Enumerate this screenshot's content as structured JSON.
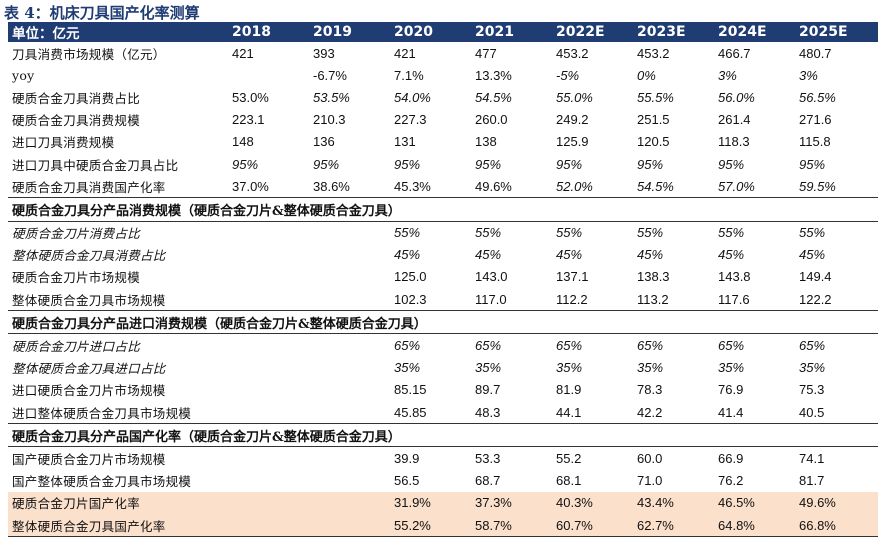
{
  "title": "表 4：机床刀具国产化率测算",
  "header": {
    "label": "单位：亿元",
    "years": [
      "2018",
      "2019",
      "2020",
      "2021",
      "2022E",
      "2023E",
      "2024E",
      "2025E"
    ]
  },
  "rows": [
    {
      "label": "刀具消费市场规模（亿元）",
      "values": [
        "421",
        "393",
        "421",
        "477",
        "453.2",
        "453.2",
        "466.7",
        "480.7"
      ],
      "italic_from": 8
    },
    {
      "label": "yoy",
      "values": [
        "",
        "-6.7%",
        "7.1%",
        "13.3%",
        "-5%",
        "0%",
        "3%",
        "3%"
      ],
      "italic_from": 4
    },
    {
      "label": "硬质合金刀具消费占比",
      "values": [
        "53.0%",
        "53.5%",
        "54.0%",
        "54.5%",
        "55.0%",
        "55.5%",
        "56.0%",
        "56.5%"
      ],
      "italic_from": 1
    },
    {
      "label": "硬质合金刀具消费规模",
      "values": [
        "223.1",
        "210.3",
        "227.3",
        "260.0",
        "249.2",
        "251.5",
        "261.4",
        "271.6"
      ],
      "italic_from": 8
    },
    {
      "label": "进口刀具消费规模",
      "values": [
        "148",
        "136",
        "131",
        "138",
        "125.9",
        "120.5",
        "118.3",
        "115.8"
      ],
      "italic_from": 8
    },
    {
      "label": "进口刀具中硬质合金刀具占比",
      "values": [
        "95%",
        "95%",
        "95%",
        "95%",
        "95%",
        "95%",
        "95%",
        "95%"
      ],
      "italic_from": 0
    },
    {
      "label": "硬质合金刀具消费国产化率",
      "values": [
        "37.0%",
        "38.6%",
        "45.3%",
        "49.6%",
        "52.0%",
        "54.5%",
        "57.0%",
        "59.5%"
      ],
      "italic_from": 4
    },
    {
      "section": "硬质合金刀具分产品消费规模（硬质合金刀片&整体硬质合金刀具）"
    },
    {
      "label": "硬质合金刀片消费占比",
      "values": [
        "",
        "",
        "55%",
        "55%",
        "55%",
        "55%",
        "55%",
        "55%"
      ],
      "italic_from": 0,
      "italic_label": true
    },
    {
      "label": "整体硬质合金刀具消费占比",
      "values": [
        "",
        "",
        "45%",
        "45%",
        "45%",
        "45%",
        "45%",
        "45%"
      ],
      "italic_from": 0,
      "italic_label": true
    },
    {
      "label": "硬质合金刀片市场规模",
      "values": [
        "",
        "",
        "125.0",
        "143.0",
        "137.1",
        "138.3",
        "143.8",
        "149.4"
      ],
      "italic_from": 8
    },
    {
      "label": "整体硬质合金刀具市场规模",
      "values": [
        "",
        "",
        "102.3",
        "117.0",
        "112.2",
        "113.2",
        "117.6",
        "122.2"
      ],
      "italic_from": 8
    },
    {
      "section": "硬质合金刀具分产品进口消费规模（硬质合金刀片&整体硬质合金刀具）"
    },
    {
      "label": "硬质合金刀片进口占比",
      "values": [
        "",
        "",
        "65%",
        "65%",
        "65%",
        "65%",
        "65%",
        "65%"
      ],
      "italic_from": 0,
      "italic_label": true
    },
    {
      "label": "整体硬质合金刀具进口占比",
      "values": [
        "",
        "",
        "35%",
        "35%",
        "35%",
        "35%",
        "35%",
        "35%"
      ],
      "italic_from": 0,
      "italic_label": true
    },
    {
      "label": "进口硬质合金刀片市场规模",
      "values": [
        "",
        "",
        "85.15",
        "89.7",
        "81.9",
        "78.3",
        "76.9",
        "75.3"
      ],
      "italic_from": 8
    },
    {
      "label": "进口整体硬质合金刀具市场规模",
      "values": [
        "",
        "",
        "45.85",
        "48.3",
        "44.1",
        "42.2",
        "41.4",
        "40.5"
      ],
      "italic_from": 8
    },
    {
      "section": "硬质合金刀具分产品国产化率（硬质合金刀片&整体硬质合金刀具）"
    },
    {
      "label": "国产硬质合金刀片市场规模",
      "values": [
        "",
        "",
        "39.9",
        "53.3",
        "55.2",
        "60.0",
        "66.9",
        "74.1"
      ],
      "italic_from": 8
    },
    {
      "label": "国产整体硬质合金刀具市场规模",
      "values": [
        "",
        "",
        "56.5",
        "68.7",
        "68.1",
        "71.0",
        "76.2",
        "81.7"
      ],
      "italic_from": 8
    },
    {
      "label": "硬质合金刀片国产化率",
      "values": [
        "",
        "",
        "31.9%",
        "37.3%",
        "40.3%",
        "43.4%",
        "46.5%",
        "49.6%"
      ],
      "italic_from": 8,
      "highlight": true
    },
    {
      "label": "整体硬质合金刀具国产化率",
      "values": [
        "",
        "",
        "55.2%",
        "58.7%",
        "60.7%",
        "62.7%",
        "64.8%",
        "66.8%"
      ],
      "italic_from": 8,
      "highlight": true
    }
  ],
  "colors": {
    "header_bg": "#1f3c73",
    "highlight_bg": "#fbe0cc",
    "title": "#1f3c73"
  }
}
